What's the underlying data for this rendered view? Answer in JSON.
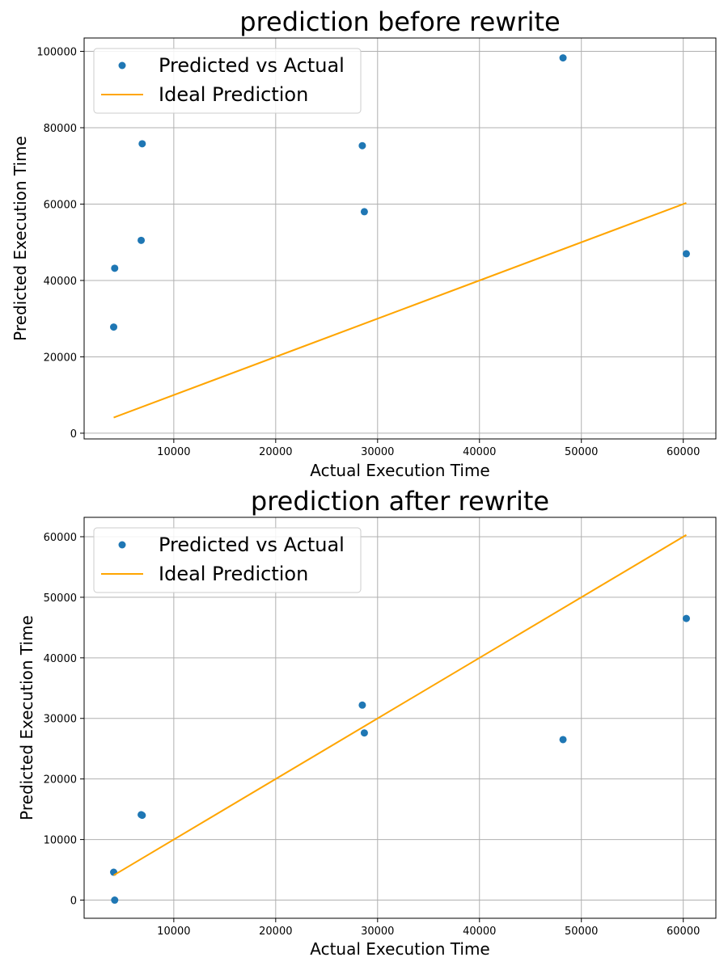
{
  "chart_data": [
    {
      "type": "scatter",
      "title": "prediction before rewrite",
      "xlabel": "Actual Execution Time",
      "ylabel": "Predicted Execution Time",
      "xlim": [
        1200,
        63200
      ],
      "ylim": [
        -1500,
        103500
      ],
      "xticks": [
        10000,
        20000,
        30000,
        40000,
        50000,
        60000
      ],
      "yticks": [
        0,
        20000,
        40000,
        60000,
        80000,
        100000
      ],
      "grid": true,
      "legend_position": "top-left",
      "series": [
        {
          "name": "Predicted vs Actual",
          "kind": "scatter",
          "color": "#1f77b4",
          "points": [
            {
              "x": 4100,
              "y": 27800
            },
            {
              "x": 4200,
              "y": 43200
            },
            {
              "x": 6800,
              "y": 50500
            },
            {
              "x": 6900,
              "y": 75800
            },
            {
              "x": 28500,
              "y": 75300
            },
            {
              "x": 28700,
              "y": 58000
            },
            {
              "x": 48200,
              "y": 98300
            },
            {
              "x": 60300,
              "y": 47000
            }
          ]
        },
        {
          "name": "Ideal Prediction",
          "kind": "line",
          "color": "#ffa500",
          "points": [
            {
              "x": 4100,
              "y": 4100
            },
            {
              "x": 60300,
              "y": 60300
            }
          ]
        }
      ]
    },
    {
      "type": "scatter",
      "title": "prediction after rewrite",
      "xlabel": "Actual Execution Time",
      "ylabel": "Predicted Execution Time",
      "xlim": [
        1200,
        63200
      ],
      "ylim": [
        -3000,
        63200
      ],
      "xticks": [
        10000,
        20000,
        30000,
        40000,
        50000,
        60000
      ],
      "yticks": [
        0,
        10000,
        20000,
        30000,
        40000,
        50000,
        60000
      ],
      "grid": true,
      "legend_position": "top-left",
      "series": [
        {
          "name": "Predicted vs Actual",
          "kind": "scatter",
          "color": "#1f77b4",
          "points": [
            {
              "x": 4100,
              "y": 4600
            },
            {
              "x": 4200,
              "y": 0
            },
            {
              "x": 6800,
              "y": 14100
            },
            {
              "x": 6900,
              "y": 14000
            },
            {
              "x": 28500,
              "y": 32200
            },
            {
              "x": 28700,
              "y": 27600
            },
            {
              "x": 48200,
              "y": 26500
            },
            {
              "x": 60300,
              "y": 46500
            }
          ]
        },
        {
          "name": "Ideal Prediction",
          "kind": "line",
          "color": "#ffa500",
          "points": [
            {
              "x": 4100,
              "y": 4100
            },
            {
              "x": 60300,
              "y": 60300
            }
          ]
        }
      ]
    }
  ]
}
